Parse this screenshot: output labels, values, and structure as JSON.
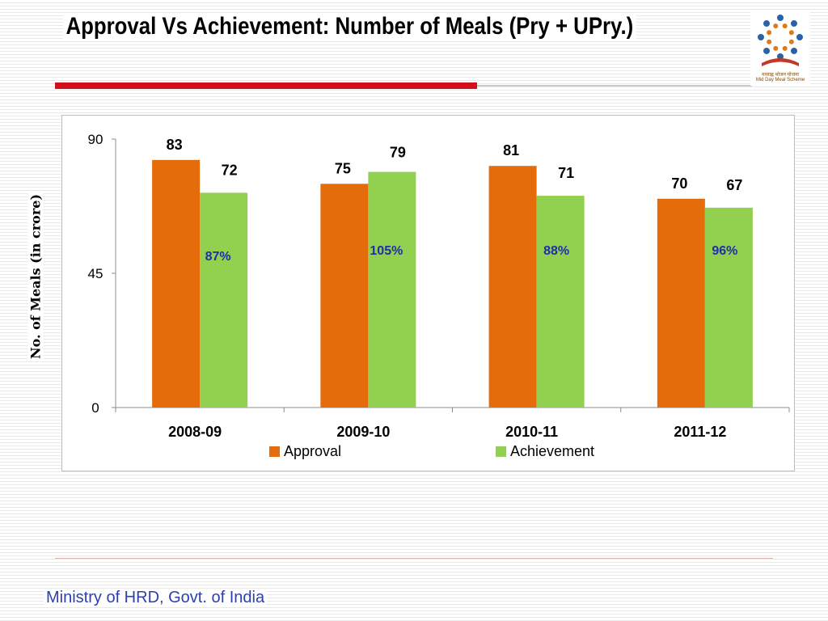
{
  "slide": {
    "title": "Approval Vs Achievement:  Number of Meals (Pry + UPry.)",
    "footer": "Ministry of HRD, Govt. of India",
    "logo": {
      "caption_line1": "मध्याह्न भोजन योजना",
      "caption_line2": "Mid Day Meal Scheme",
      "colors": {
        "figures": "#2a62a8",
        "dots": "#e07a12",
        "book": "#c0392b"
      }
    }
  },
  "chart_data": {
    "type": "bar",
    "title": "",
    "xlabel": "",
    "ylabel": "No. of Meals (in crore)",
    "ylim": [
      0,
      90
    ],
    "yticks": [
      0,
      45,
      90
    ],
    "grid": false,
    "legend": "bottom",
    "categories": [
      "2008-09",
      "2009-10",
      "2010-11",
      "2011-12"
    ],
    "series": [
      {
        "name": "Approval",
        "values": [
          83,
          75,
          81,
          70
        ],
        "color": "#e46c0a"
      },
      {
        "name": "Achievement",
        "values": [
          72,
          79,
          71,
          67
        ],
        "color": "#92d050"
      }
    ],
    "percent_labels": [
      "87%",
      "105%",
      "88%",
      "96%"
    ],
    "percent_color": "#1f2fa8"
  }
}
